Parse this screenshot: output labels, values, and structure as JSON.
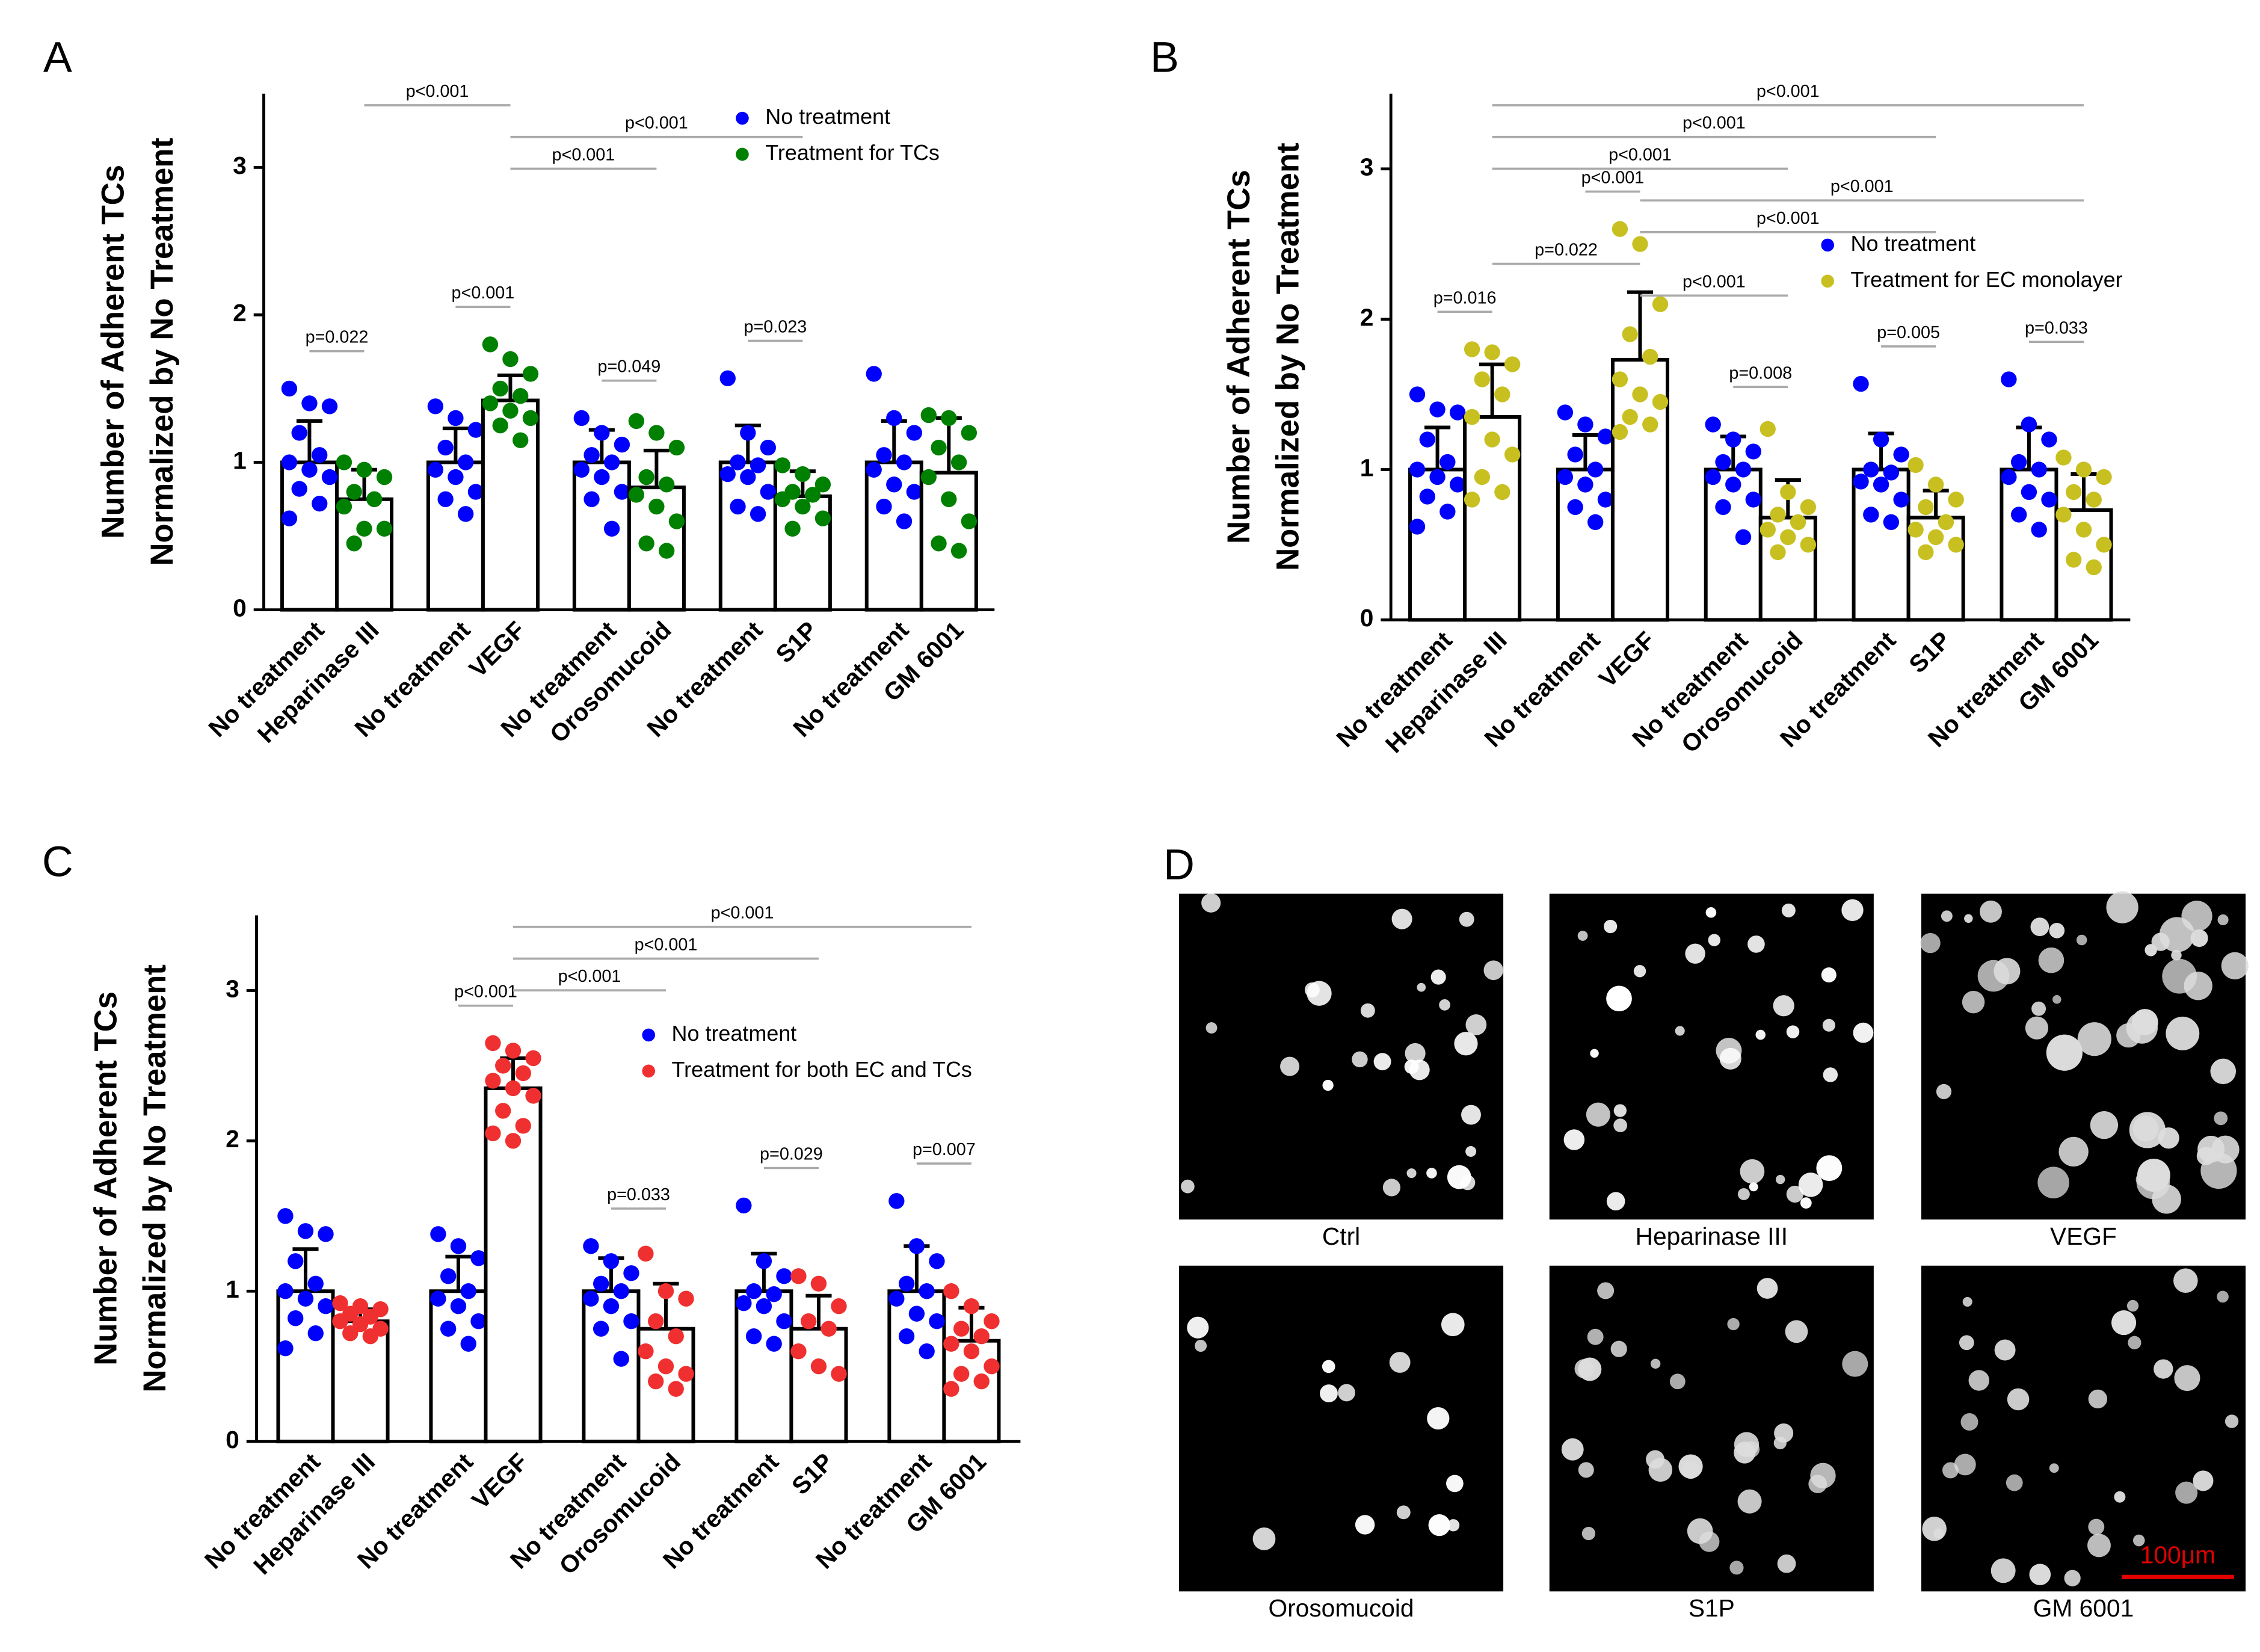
{
  "chart_data": [
    {
      "type": "bar",
      "label": "A",
      "y_label": [
        "Number of Adherent TCs",
        "Normalized by No Treatment"
      ],
      "categories": [
        "No treatment",
        "Heparinase III",
        "No treatment",
        "VEGF",
        "No treatment",
        "Orosomucoid",
        "No treatment",
        "S1P",
        "No treatment",
        "GM 6001"
      ],
      "ylim": [
        0,
        3.5
      ],
      "yticks": [
        0,
        1,
        2,
        3
      ],
      "series": [
        {
          "name": "No treatment",
          "color": "#0000ff",
          "values": [
            1.0,
            null,
            1.0,
            null,
            1.0,
            null,
            1.0,
            null,
            1.0,
            null
          ],
          "errors": [
            0.28,
            null,
            0.23,
            null,
            0.22,
            null,
            0.25,
            null,
            0.28,
            null
          ],
          "points": [
            [
              1.5,
              1.4,
              1.38,
              1.2,
              1.05,
              1.0,
              0.95,
              0.9,
              0.82,
              0.72,
              0.62
            ],
            null,
            [
              1.38,
              1.3,
              1.22,
              1.1,
              1.0,
              0.95,
              0.9,
              0.8,
              0.75,
              0.65
            ],
            null,
            [
              1.3,
              1.2,
              1.12,
              1.05,
              1.0,
              0.95,
              0.9,
              0.8,
              0.75,
              0.55
            ],
            null,
            [
              1.57,
              1.2,
              1.1,
              1.0,
              0.98,
              0.92,
              0.9,
              0.8,
              0.7,
              0.65
            ],
            null,
            [
              1.6,
              1.3,
              1.2,
              1.05,
              1.0,
              0.95,
              0.85,
              0.8,
              0.7,
              0.6
            ],
            null
          ]
        },
        {
          "name": "Treatment for TCs",
          "color": "#008000",
          "values": [
            null,
            0.75,
            null,
            1.42,
            null,
            0.83,
            null,
            0.77,
            null,
            0.93
          ],
          "errors": [
            null,
            0.2,
            null,
            0.17,
            null,
            0.25,
            null,
            0.17,
            null,
            0.37
          ],
          "points": [
            null,
            [
              1.0,
              0.95,
              0.9,
              0.8,
              0.75,
              0.7,
              0.55,
              0.55,
              0.45
            ],
            null,
            [
              1.8,
              1.7,
              1.6,
              1.5,
              1.45,
              1.4,
              1.35,
              1.3,
              1.25,
              1.15
            ],
            null,
            [
              1.28,
              1.2,
              1.1,
              0.9,
              0.85,
              0.78,
              0.7,
              0.6,
              0.45,
              0.4
            ],
            null,
            [
              0.98,
              0.92,
              0.85,
              0.8,
              0.78,
              0.75,
              0.7,
              0.62,
              0.55
            ],
            null,
            [
              1.32,
              1.3,
              1.2,
              1.1,
              1.0,
              0.9,
              0.75,
              0.6,
              0.45,
              0.4
            ]
          ]
        }
      ],
      "comparisons": [
        {
          "pair": [
            0,
            1
          ],
          "label": "p=0.022"
        },
        {
          "pair": [
            2,
            3
          ],
          "label": "p<0.001"
        },
        {
          "pair": [
            4,
            5
          ],
          "label": "p=0.049"
        },
        {
          "pair": [
            6,
            7
          ],
          "label": "p=0.023"
        },
        {
          "pair": [
            1,
            3
          ],
          "label": "p<0.001"
        },
        {
          "pair": [
            3,
            7
          ],
          "label": "p<0.001"
        },
        {
          "pair": [
            3,
            5
          ],
          "label": "p<0.001"
        }
      ]
    },
    {
      "type": "bar",
      "label": "B",
      "y_label": [
        "Number of Adherent TCs",
        "Normalized by No Treatment"
      ],
      "categories": [
        "No treatment",
        "Heparinase III",
        "No treatment",
        "VEGF",
        "No treatment",
        "Orosomucoid",
        "No treatment",
        "S1P",
        "No treatment",
        "GM 6001"
      ],
      "ylim": [
        0,
        3.5
      ],
      "yticks": [
        0,
        1,
        2,
        3
      ],
      "series": [
        {
          "name": "No treatment",
          "color": "#0000ff",
          "values": [
            1.0,
            null,
            1.0,
            null,
            1.0,
            null,
            1.0,
            null,
            1.0,
            null
          ],
          "errors": [
            0.28,
            null,
            0.23,
            null,
            0.22,
            null,
            0.24,
            null,
            0.28,
            null
          ],
          "points": [
            [
              1.5,
              1.4,
              1.38,
              1.2,
              1.05,
              1.0,
              0.95,
              0.9,
              0.82,
              0.72,
              0.62
            ],
            null,
            [
              1.38,
              1.3,
              1.22,
              1.1,
              1.0,
              0.95,
              0.9,
              0.8,
              0.75,
              0.65
            ],
            null,
            [
              1.3,
              1.2,
              1.12,
              1.05,
              1.0,
              0.95,
              0.9,
              0.8,
              0.75,
              0.55
            ],
            null,
            [
              1.57,
              1.2,
              1.1,
              1.0,
              0.98,
              0.92,
              0.9,
              0.8,
              0.7,
              0.65
            ],
            null,
            [
              1.6,
              1.3,
              1.2,
              1.05,
              1.0,
              0.95,
              0.85,
              0.8,
              0.7,
              0.6
            ],
            null
          ]
        },
        {
          "name": "Treatment for EC monolayer",
          "color": "#c8c020",
          "values": [
            null,
            1.35,
            null,
            1.73,
            null,
            0.68,
            null,
            0.68,
            null,
            0.73
          ],
          "errors": [
            null,
            0.35,
            null,
            0.45,
            null,
            0.25,
            null,
            0.18,
            null,
            0.24
          ],
          "points": [
            null,
            [
              1.8,
              1.78,
              1.7,
              1.6,
              1.5,
              1.35,
              1.2,
              1.1,
              0.95,
              0.85,
              0.8
            ],
            null,
            [
              2.6,
              2.5,
              2.1,
              1.9,
              1.75,
              1.6,
              1.5,
              1.45,
              1.35,
              1.3,
              1.25
            ],
            null,
            [
              1.27,
              0.85,
              0.75,
              0.7,
              0.65,
              0.6,
              0.55,
              0.5,
              0.45
            ],
            null,
            [
              1.03,
              0.9,
              0.8,
              0.75,
              0.65,
              0.6,
              0.55,
              0.5,
              0.45
            ],
            null,
            [
              1.08,
              1.0,
              0.95,
              0.85,
              0.8,
              0.7,
              0.6,
              0.5,
              0.4,
              0.35
            ]
          ]
        }
      ],
      "comparisons": [
        {
          "pair": [
            0,
            1
          ],
          "label": "p=0.016"
        },
        {
          "pair": [
            2,
            3
          ],
          "label": "p<0.001"
        },
        {
          "pair": [
            4,
            5
          ],
          "label": "p=0.008"
        },
        {
          "pair": [
            6,
            7
          ],
          "label": "p=0.005"
        },
        {
          "pair": [
            8,
            9
          ],
          "label": "p=0.033"
        },
        {
          "pair": [
            1,
            9
          ],
          "label": "p<0.001"
        },
        {
          "pair": [
            1,
            7
          ],
          "label": "p<0.001"
        },
        {
          "pair": [
            1,
            5
          ],
          "label": "p<0.001"
        },
        {
          "pair": [
            3,
            9
          ],
          "label": "p<0.001"
        },
        {
          "pair": [
            3,
            7
          ],
          "label": "p<0.001"
        },
        {
          "pair": [
            1,
            3
          ],
          "label": "p=0.022"
        },
        {
          "pair": [
            3,
            5
          ],
          "label": "p<0.001"
        }
      ]
    },
    {
      "type": "bar",
      "label": "C",
      "y_label": [
        "Number of Adherent TCs",
        "Normalized by No Treatment"
      ],
      "categories": [
        "No treatment",
        "Heparinase III",
        "No treatment",
        "VEGF",
        "No treatment",
        "Orosomucoid",
        "No treatment",
        "S1P",
        "No treatment",
        "GM 6001"
      ],
      "ylim": [
        0,
        3.5
      ],
      "yticks": [
        0,
        1,
        2,
        3
      ],
      "series": [
        {
          "name": "No treatment",
          "color": "#0000ff",
          "values": [
            1.0,
            null,
            1.0,
            null,
            1.0,
            null,
            1.0,
            null,
            1.0,
            null
          ],
          "errors": [
            0.28,
            null,
            0.23,
            null,
            0.22,
            null,
            0.25,
            null,
            0.3,
            null
          ],
          "points": [
            [
              1.5,
              1.4,
              1.38,
              1.2,
              1.05,
              1.0,
              0.95,
              0.9,
              0.82,
              0.72,
              0.62
            ],
            null,
            [
              1.38,
              1.3,
              1.22,
              1.1,
              1.0,
              0.95,
              0.9,
              0.8,
              0.75,
              0.65
            ],
            null,
            [
              1.3,
              1.2,
              1.12,
              1.05,
              1.0,
              0.95,
              0.9,
              0.8,
              0.75,
              0.55
            ],
            null,
            [
              1.57,
              1.2,
              1.1,
              1.0,
              0.98,
              0.92,
              0.9,
              0.8,
              0.7,
              0.65
            ],
            null,
            [
              1.6,
              1.3,
              1.2,
              1.05,
              1.0,
              0.95,
              0.85,
              0.8,
              0.7,
              0.6
            ],
            null
          ]
        },
        {
          "name": "Treatment for both EC and TCs",
          "color": "#f03030",
          "values": [
            null,
            0.8,
            null,
            2.35,
            null,
            0.75,
            null,
            0.75,
            null,
            0.67
          ],
          "errors": [
            null,
            0.08,
            null,
            0.2,
            null,
            0.3,
            null,
            0.22,
            null,
            0.22
          ],
          "points": [
            null,
            [
              0.92,
              0.9,
              0.88,
              0.85,
              0.83,
              0.8,
              0.78,
              0.75,
              0.72,
              0.7
            ],
            null,
            [
              2.65,
              2.6,
              2.55,
              2.5,
              2.45,
              2.4,
              2.35,
              2.3,
              2.2,
              2.1,
              2.05,
              2.0
            ],
            null,
            [
              1.25,
              1.0,
              0.95,
              0.8,
              0.7,
              0.6,
              0.5,
              0.45,
              0.4,
              0.35
            ],
            null,
            [
              1.1,
              1.05,
              0.9,
              0.8,
              0.75,
              0.6,
              0.5,
              0.45
            ],
            null,
            [
              1.0,
              0.9,
              0.8,
              0.75,
              0.7,
              0.65,
              0.6,
              0.5,
              0.45,
              0.4,
              0.35
            ]
          ]
        }
      ],
      "comparisons": [
        {
          "pair": [
            2,
            3
          ],
          "label": "p<0.001"
        },
        {
          "pair": [
            4,
            5
          ],
          "label": "p=0.033"
        },
        {
          "pair": [
            6,
            7
          ],
          "label": "p=0.029"
        },
        {
          "pair": [
            8,
            9
          ],
          "label": "p=0.007"
        },
        {
          "pair": [
            3,
            9
          ],
          "label": "p<0.001"
        },
        {
          "pair": [
            3,
            7
          ],
          "label": "p<0.001"
        },
        {
          "pair": [
            3,
            5
          ],
          "label": "p<0.001"
        }
      ]
    }
  ],
  "images": {
    "label": "D",
    "labels": [
      "Ctrl",
      "Heparinase III",
      "VEGF",
      "Orosomucoid",
      "S1P",
      "GM 6001"
    ],
    "scale_bar": "100μm"
  }
}
